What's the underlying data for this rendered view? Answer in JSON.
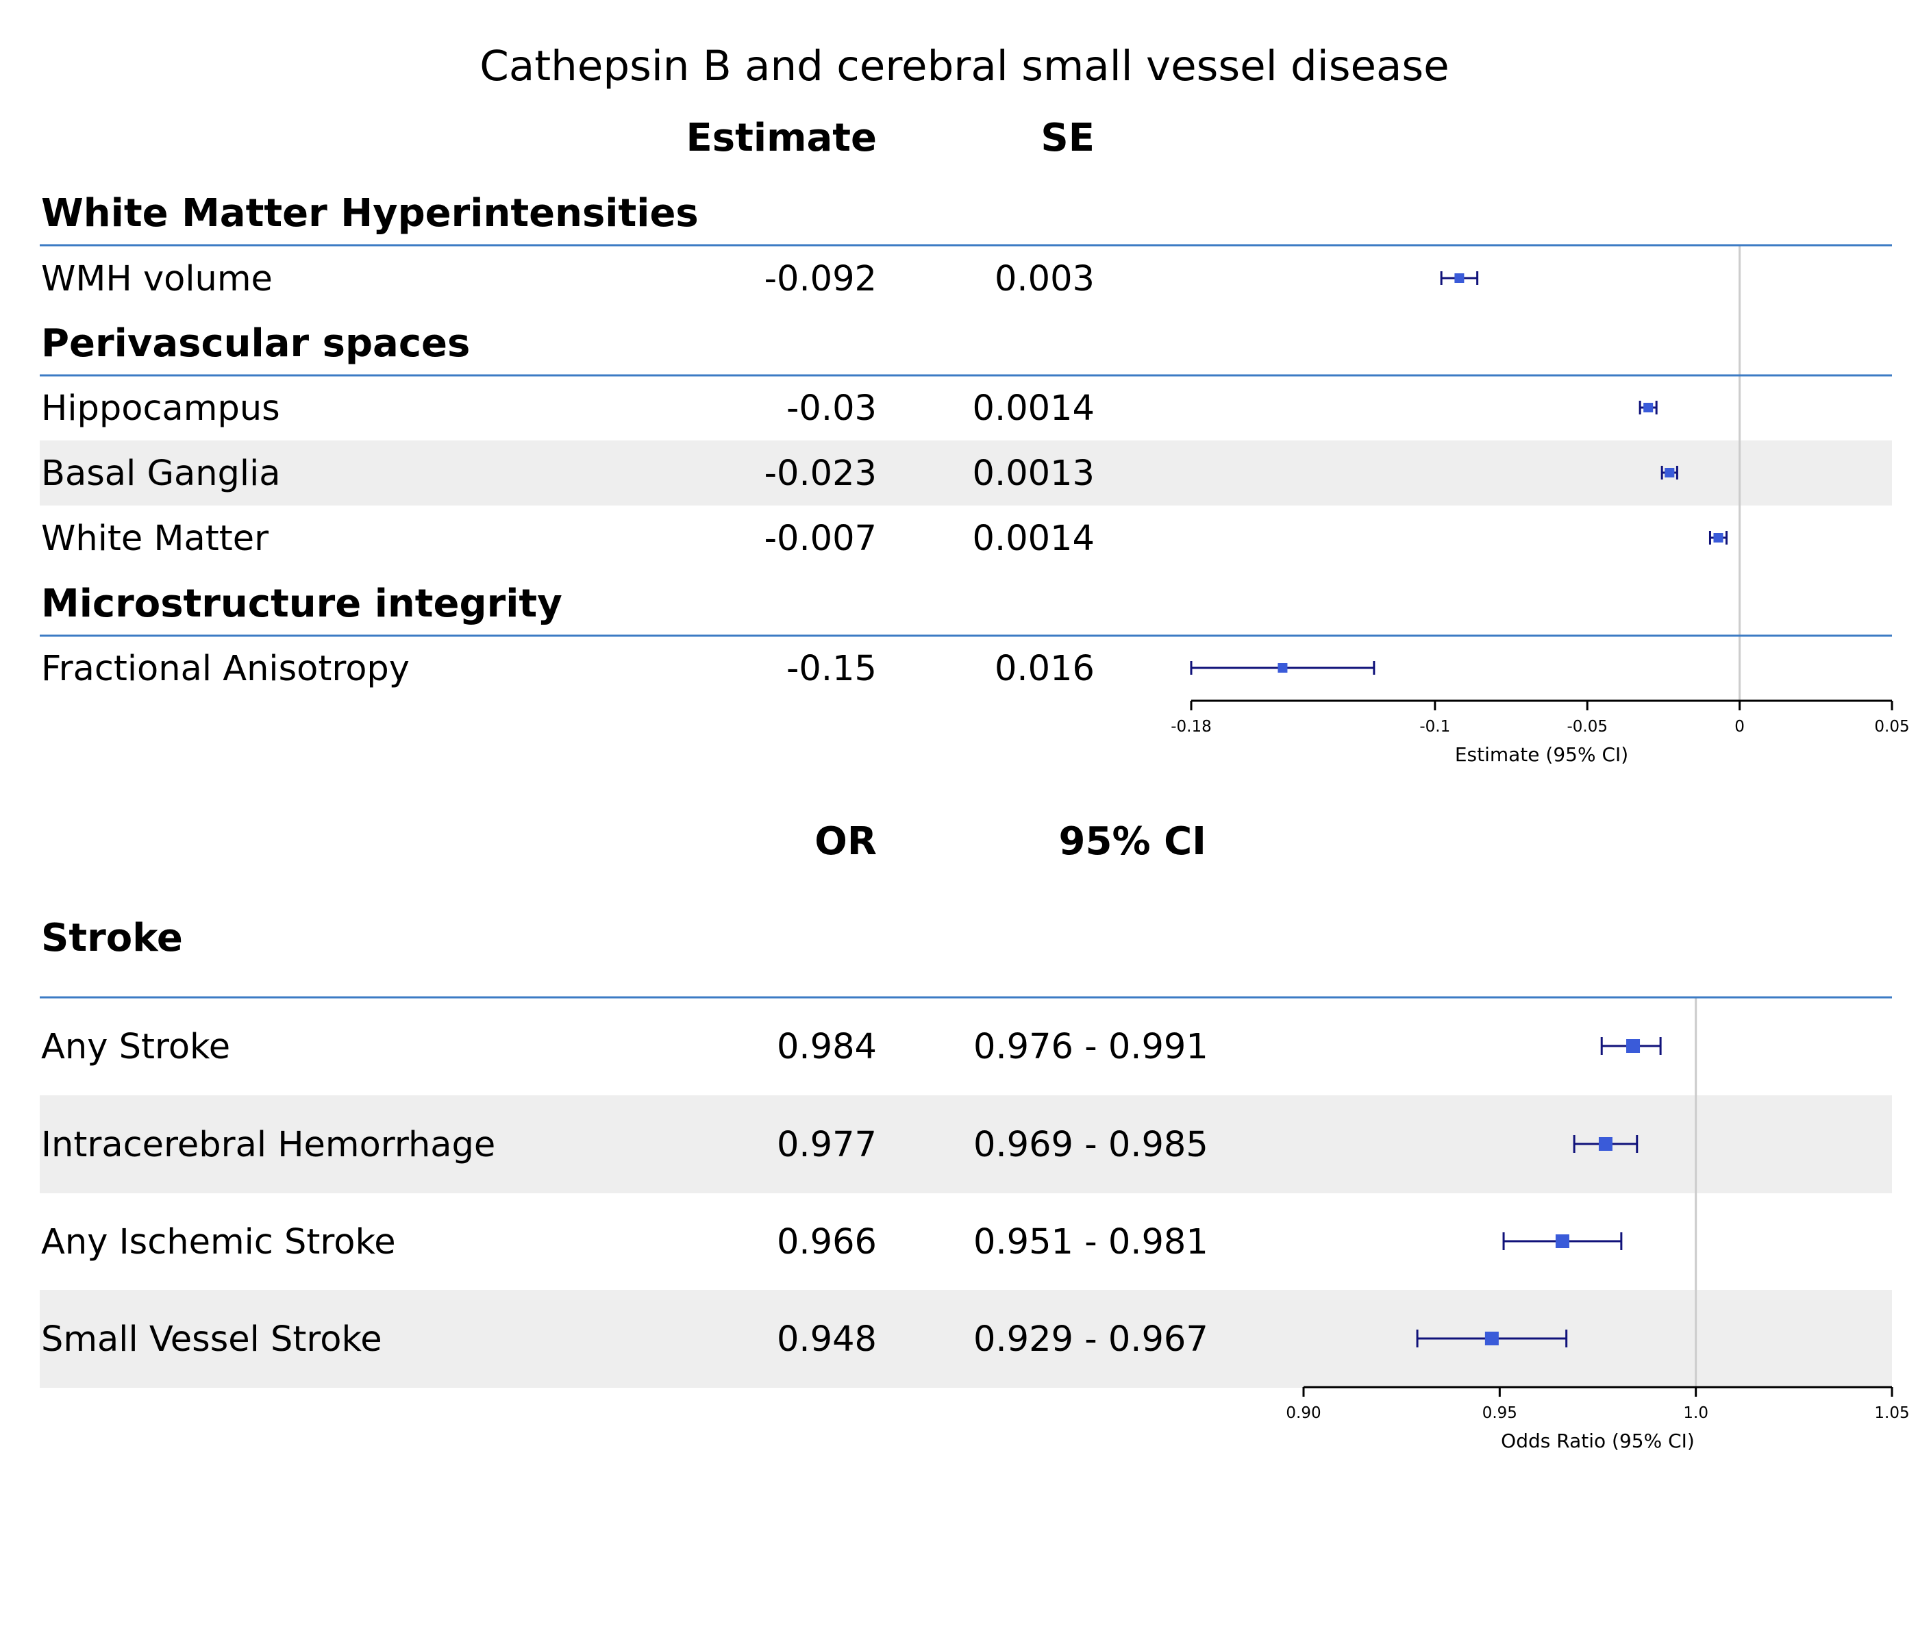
{
  "title": "Cathepsin B and cerebral small vessel disease",
  "colors": {
    "marker": "#3a5bd9",
    "whisker": "#10127a",
    "group_rule": "#3c7bc4",
    "stripe": "#eeeeee",
    "ref_line": "#cccccc"
  },
  "chart_data": [
    {
      "type": "forest",
      "panel": "continuous",
      "headers": {
        "col1": "Estimate",
        "col2": "SE"
      },
      "xlabel": "Estimate (95% CI)",
      "xlim": [
        -0.18,
        0.05
      ],
      "xticks": [
        -0.18,
        -0.1,
        -0.05,
        0,
        0.05
      ],
      "xtick_labels": [
        "-0.18",
        "-0.1",
        "-0.05",
        "0",
        "0.05"
      ],
      "ref": 0,
      "groups": [
        {
          "name": "White Matter Hyperintensities",
          "rows": [
            {
              "label": "WMH volume",
              "col1": "-0.092",
              "col2": "0.003",
              "est": -0.092,
              "lo": -0.0979,
              "hi": -0.0861,
              "stripe": false
            }
          ]
        },
        {
          "name": "Perivascular spaces",
          "rows": [
            {
              "label": "Hippocampus",
              "col1": "-0.03",
              "col2": "0.0014",
              "est": -0.03,
              "lo": -0.0327,
              "hi": -0.0273,
              "stripe": false
            },
            {
              "label": "Basal Ganglia",
              "col1": "-0.023",
              "col2": "0.0013",
              "est": -0.023,
              "lo": -0.0255,
              "hi": -0.0205,
              "stripe": true
            },
            {
              "label": "White Matter",
              "col1": "-0.007",
              "col2": "0.0014",
              "est": -0.007,
              "lo": -0.0097,
              "hi": -0.0043,
              "stripe": false
            }
          ]
        },
        {
          "name": "Microstructure integrity",
          "rows": [
            {
              "label": "Fractional Anisotropy",
              "col1": "-0.15",
              "col2": "0.016",
              "est": -0.15,
              "lo": -0.18,
              "hi": -0.12,
              "stripe": false
            }
          ]
        }
      ]
    },
    {
      "type": "forest",
      "panel": "binary",
      "headers": {
        "col1": "OR",
        "col2": "95% CI"
      },
      "xlabel": "Odds Ratio (95% CI)",
      "xlim": [
        0.9,
        1.05
      ],
      "xticks": [
        0.9,
        0.95,
        1.0,
        1.05
      ],
      "xtick_labels": [
        "0.90",
        "0.95",
        "1.0",
        "1.05"
      ],
      "ref": 1.0,
      "groups": [
        {
          "name": "Stroke",
          "rows": [
            {
              "label": "Any Stroke",
              "col1": "0.984",
              "col2": "0.976 - 0.991",
              "est": 0.984,
              "lo": 0.976,
              "hi": 0.991,
              "stripe": false
            },
            {
              "label": "Intracerebral Hemorrhage",
              "col1": "0.977",
              "col2": "0.969 - 0.985",
              "est": 0.977,
              "lo": 0.969,
              "hi": 0.985,
              "stripe": true
            },
            {
              "label": "Any Ischemic Stroke",
              "col1": "0.966",
              "col2": "0.951 - 0.981",
              "est": 0.966,
              "lo": 0.951,
              "hi": 0.981,
              "stripe": false
            },
            {
              "label": "Small Vessel Stroke",
              "col1": "0.948",
              "col2": "0.929 - 0.967",
              "est": 0.948,
              "lo": 0.929,
              "hi": 0.967,
              "stripe": true
            }
          ]
        }
      ]
    }
  ]
}
